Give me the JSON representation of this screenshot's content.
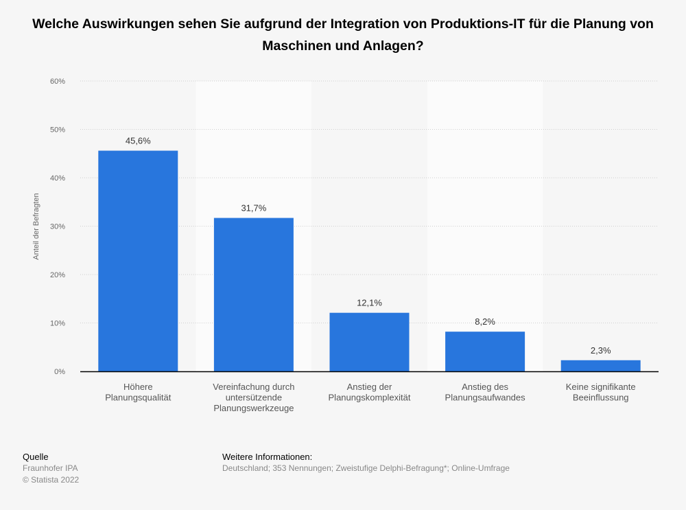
{
  "chart_data": {
    "type": "bar",
    "title": "Welche Auswirkungen sehen Sie aufgrund der Integration von Produktions-IT für die Planung von Maschinen und Anlagen?",
    "ylabel": "Anteil der Befragten",
    "xlabel": "",
    "ylim": [
      0,
      60
    ],
    "yticks": [
      "0%",
      "10%",
      "20%",
      "30%",
      "40%",
      "50%",
      "60%"
    ],
    "categories": [
      [
        "Höhere",
        "Planungsqualität"
      ],
      [
        "Vereinfachung durch",
        "untersützende",
        "Planungswerkzeuge"
      ],
      [
        "Anstieg der",
        "Planungskomplexität"
      ],
      [
        "Anstieg des",
        "Planungsaufwandes"
      ],
      [
        "Keine signifikante",
        "Beeinflussung"
      ]
    ],
    "values": [
      45.6,
      31.7,
      12.1,
      8.2,
      2.3
    ],
    "data_labels": [
      "45,6%",
      "31,7%",
      "12,1%",
      "8,2%",
      "2,3%"
    ],
    "bar_color": "#2876dd",
    "grid": true
  },
  "footer": {
    "source_heading": "Quelle",
    "source": "Fraunhofer IPA",
    "copyright": "© Statista 2022",
    "info_heading": "Weitere Informationen:",
    "info": "Deutschland; 353 Nennungen; Zweistufige Delphi-Befragung*; Online-Umfrage"
  }
}
